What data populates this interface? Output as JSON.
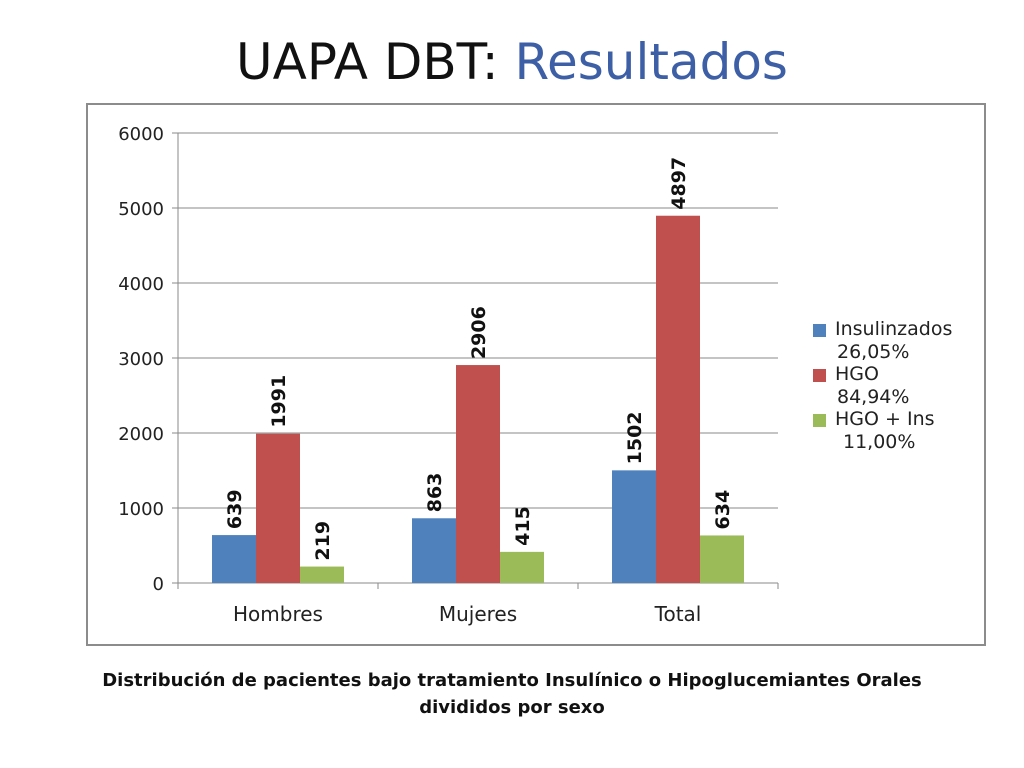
{
  "slide": {
    "title_part1": "UAPA DBT: ",
    "title_part2": "Resultados",
    "title_part2_color": "#3d5fa6",
    "caption_line1": "Distribución de pacientes bajo tratamiento Insulínico o Hipoglucemiantes Orales",
    "caption_line2": "divididos por sexo"
  },
  "chart_data": {
    "type": "bar",
    "categories": [
      "Hombres",
      "Mujeres",
      "Total"
    ],
    "series": [
      {
        "name": "Insulinzados",
        "note": "26,05%",
        "color": "#4f81bd",
        "values": [
          639,
          863,
          1502
        ]
      },
      {
        "name": "HGO",
        "note": "84,94%",
        "color": "#c0504d",
        "values": [
          1991,
          2906,
          4897
        ]
      },
      {
        "name": "HGO + Ins",
        "note": "11,00%",
        "color": "#9bbb59",
        "values": [
          219,
          415,
          634
        ]
      }
    ],
    "ylim": [
      0,
      6000
    ],
    "yticks": [
      0,
      1000,
      2000,
      3000,
      4000,
      5000,
      6000
    ],
    "grid": true,
    "legend_position": "right",
    "data_labels": "rotated, above bars"
  }
}
